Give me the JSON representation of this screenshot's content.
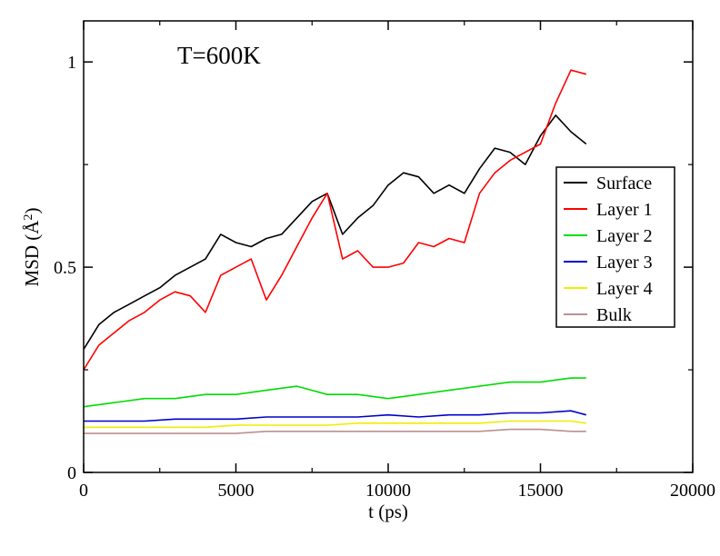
{
  "chart_data": {
    "type": "line",
    "title": "",
    "annotation": "T=600K",
    "xlabel": "t (ps)",
    "ylabel_main": "MSD (",
    "ylabel_unit": "Å",
    "ylabel_exp": "2",
    "ylabel_close": ")",
    "xlim": [
      0,
      20000
    ],
    "ylim": [
      0,
      1.1
    ],
    "x_ticks": [
      0,
      5000,
      10000,
      15000,
      20000
    ],
    "x_tick_labels": [
      "0",
      "5000",
      "10000",
      "15000",
      "20000"
    ],
    "y_ticks": [
      0,
      0.5,
      1
    ],
    "y_tick_labels": [
      "0",
      "0.5",
      "1"
    ],
    "grid": false,
    "legend_position": "right",
    "series": [
      {
        "name": "Surface",
        "color": "#000000",
        "x": [
          0,
          500,
          1000,
          1500,
          2000,
          2500,
          3000,
          3500,
          4000,
          4500,
          5000,
          5500,
          6000,
          6500,
          7000,
          7500,
          8000,
          8500,
          9000,
          9500,
          10000,
          10500,
          11000,
          11500,
          12000,
          12500,
          13000,
          13500,
          14000,
          14500,
          15000,
          15500,
          16000,
          16500
        ],
        "y": [
          0.3,
          0.36,
          0.39,
          0.41,
          0.43,
          0.45,
          0.48,
          0.5,
          0.52,
          0.58,
          0.56,
          0.55,
          0.57,
          0.58,
          0.62,
          0.66,
          0.68,
          0.58,
          0.62,
          0.65,
          0.7,
          0.73,
          0.72,
          0.68,
          0.7,
          0.68,
          0.74,
          0.79,
          0.78,
          0.75,
          0.82,
          0.87,
          0.83,
          0.8
        ]
      },
      {
        "name": "Layer 1",
        "color": "#ff0000",
        "x": [
          0,
          500,
          1000,
          1500,
          2000,
          2500,
          3000,
          3500,
          4000,
          4500,
          5000,
          5500,
          6000,
          6500,
          7000,
          7500,
          8000,
          8500,
          9000,
          9500,
          10000,
          10500,
          11000,
          11500,
          12000,
          12500,
          13000,
          13500,
          14000,
          14500,
          15000,
          15500,
          16000,
          16500
        ],
        "y": [
          0.25,
          0.31,
          0.34,
          0.37,
          0.39,
          0.42,
          0.44,
          0.43,
          0.39,
          0.48,
          0.5,
          0.52,
          0.42,
          0.48,
          0.55,
          0.62,
          0.68,
          0.52,
          0.54,
          0.5,
          0.5,
          0.51,
          0.56,
          0.55,
          0.57,
          0.56,
          0.68,
          0.73,
          0.76,
          0.78,
          0.8,
          0.9,
          0.98,
          0.97
        ]
      },
      {
        "name": "Layer 2",
        "color": "#00dd00",
        "x": [
          0,
          1000,
          2000,
          3000,
          4000,
          5000,
          6000,
          7000,
          8000,
          9000,
          10000,
          11000,
          12000,
          13000,
          14000,
          15000,
          16000,
          16500
        ],
        "y": [
          0.16,
          0.17,
          0.18,
          0.18,
          0.19,
          0.19,
          0.2,
          0.21,
          0.19,
          0.19,
          0.18,
          0.19,
          0.2,
          0.21,
          0.22,
          0.22,
          0.23,
          0.23
        ]
      },
      {
        "name": "Layer 3",
        "color": "#0000cc",
        "x": [
          0,
          1000,
          2000,
          3000,
          4000,
          5000,
          6000,
          7000,
          8000,
          9000,
          10000,
          11000,
          12000,
          13000,
          14000,
          15000,
          16000,
          16500
        ],
        "y": [
          0.125,
          0.125,
          0.125,
          0.13,
          0.13,
          0.13,
          0.135,
          0.135,
          0.135,
          0.135,
          0.14,
          0.135,
          0.14,
          0.14,
          0.145,
          0.145,
          0.15,
          0.14
        ]
      },
      {
        "name": "Layer 4",
        "color": "#eeee00",
        "x": [
          0,
          1000,
          2000,
          3000,
          4000,
          5000,
          6000,
          7000,
          8000,
          9000,
          10000,
          11000,
          12000,
          13000,
          14000,
          15000,
          16000,
          16500
        ],
        "y": [
          0.11,
          0.11,
          0.11,
          0.11,
          0.11,
          0.115,
          0.115,
          0.115,
          0.115,
          0.12,
          0.12,
          0.12,
          0.12,
          0.12,
          0.125,
          0.125,
          0.125,
          0.12
        ]
      },
      {
        "name": "Bulk",
        "color": "#bc8f8f",
        "x": [
          0,
          1000,
          2000,
          3000,
          4000,
          5000,
          6000,
          7000,
          8000,
          9000,
          10000,
          11000,
          12000,
          13000,
          14000,
          15000,
          16000,
          16500
        ],
        "y": [
          0.095,
          0.095,
          0.095,
          0.095,
          0.095,
          0.095,
          0.1,
          0.1,
          0.1,
          0.1,
          0.1,
          0.1,
          0.1,
          0.1,
          0.105,
          0.105,
          0.1,
          0.1
        ]
      }
    ]
  }
}
